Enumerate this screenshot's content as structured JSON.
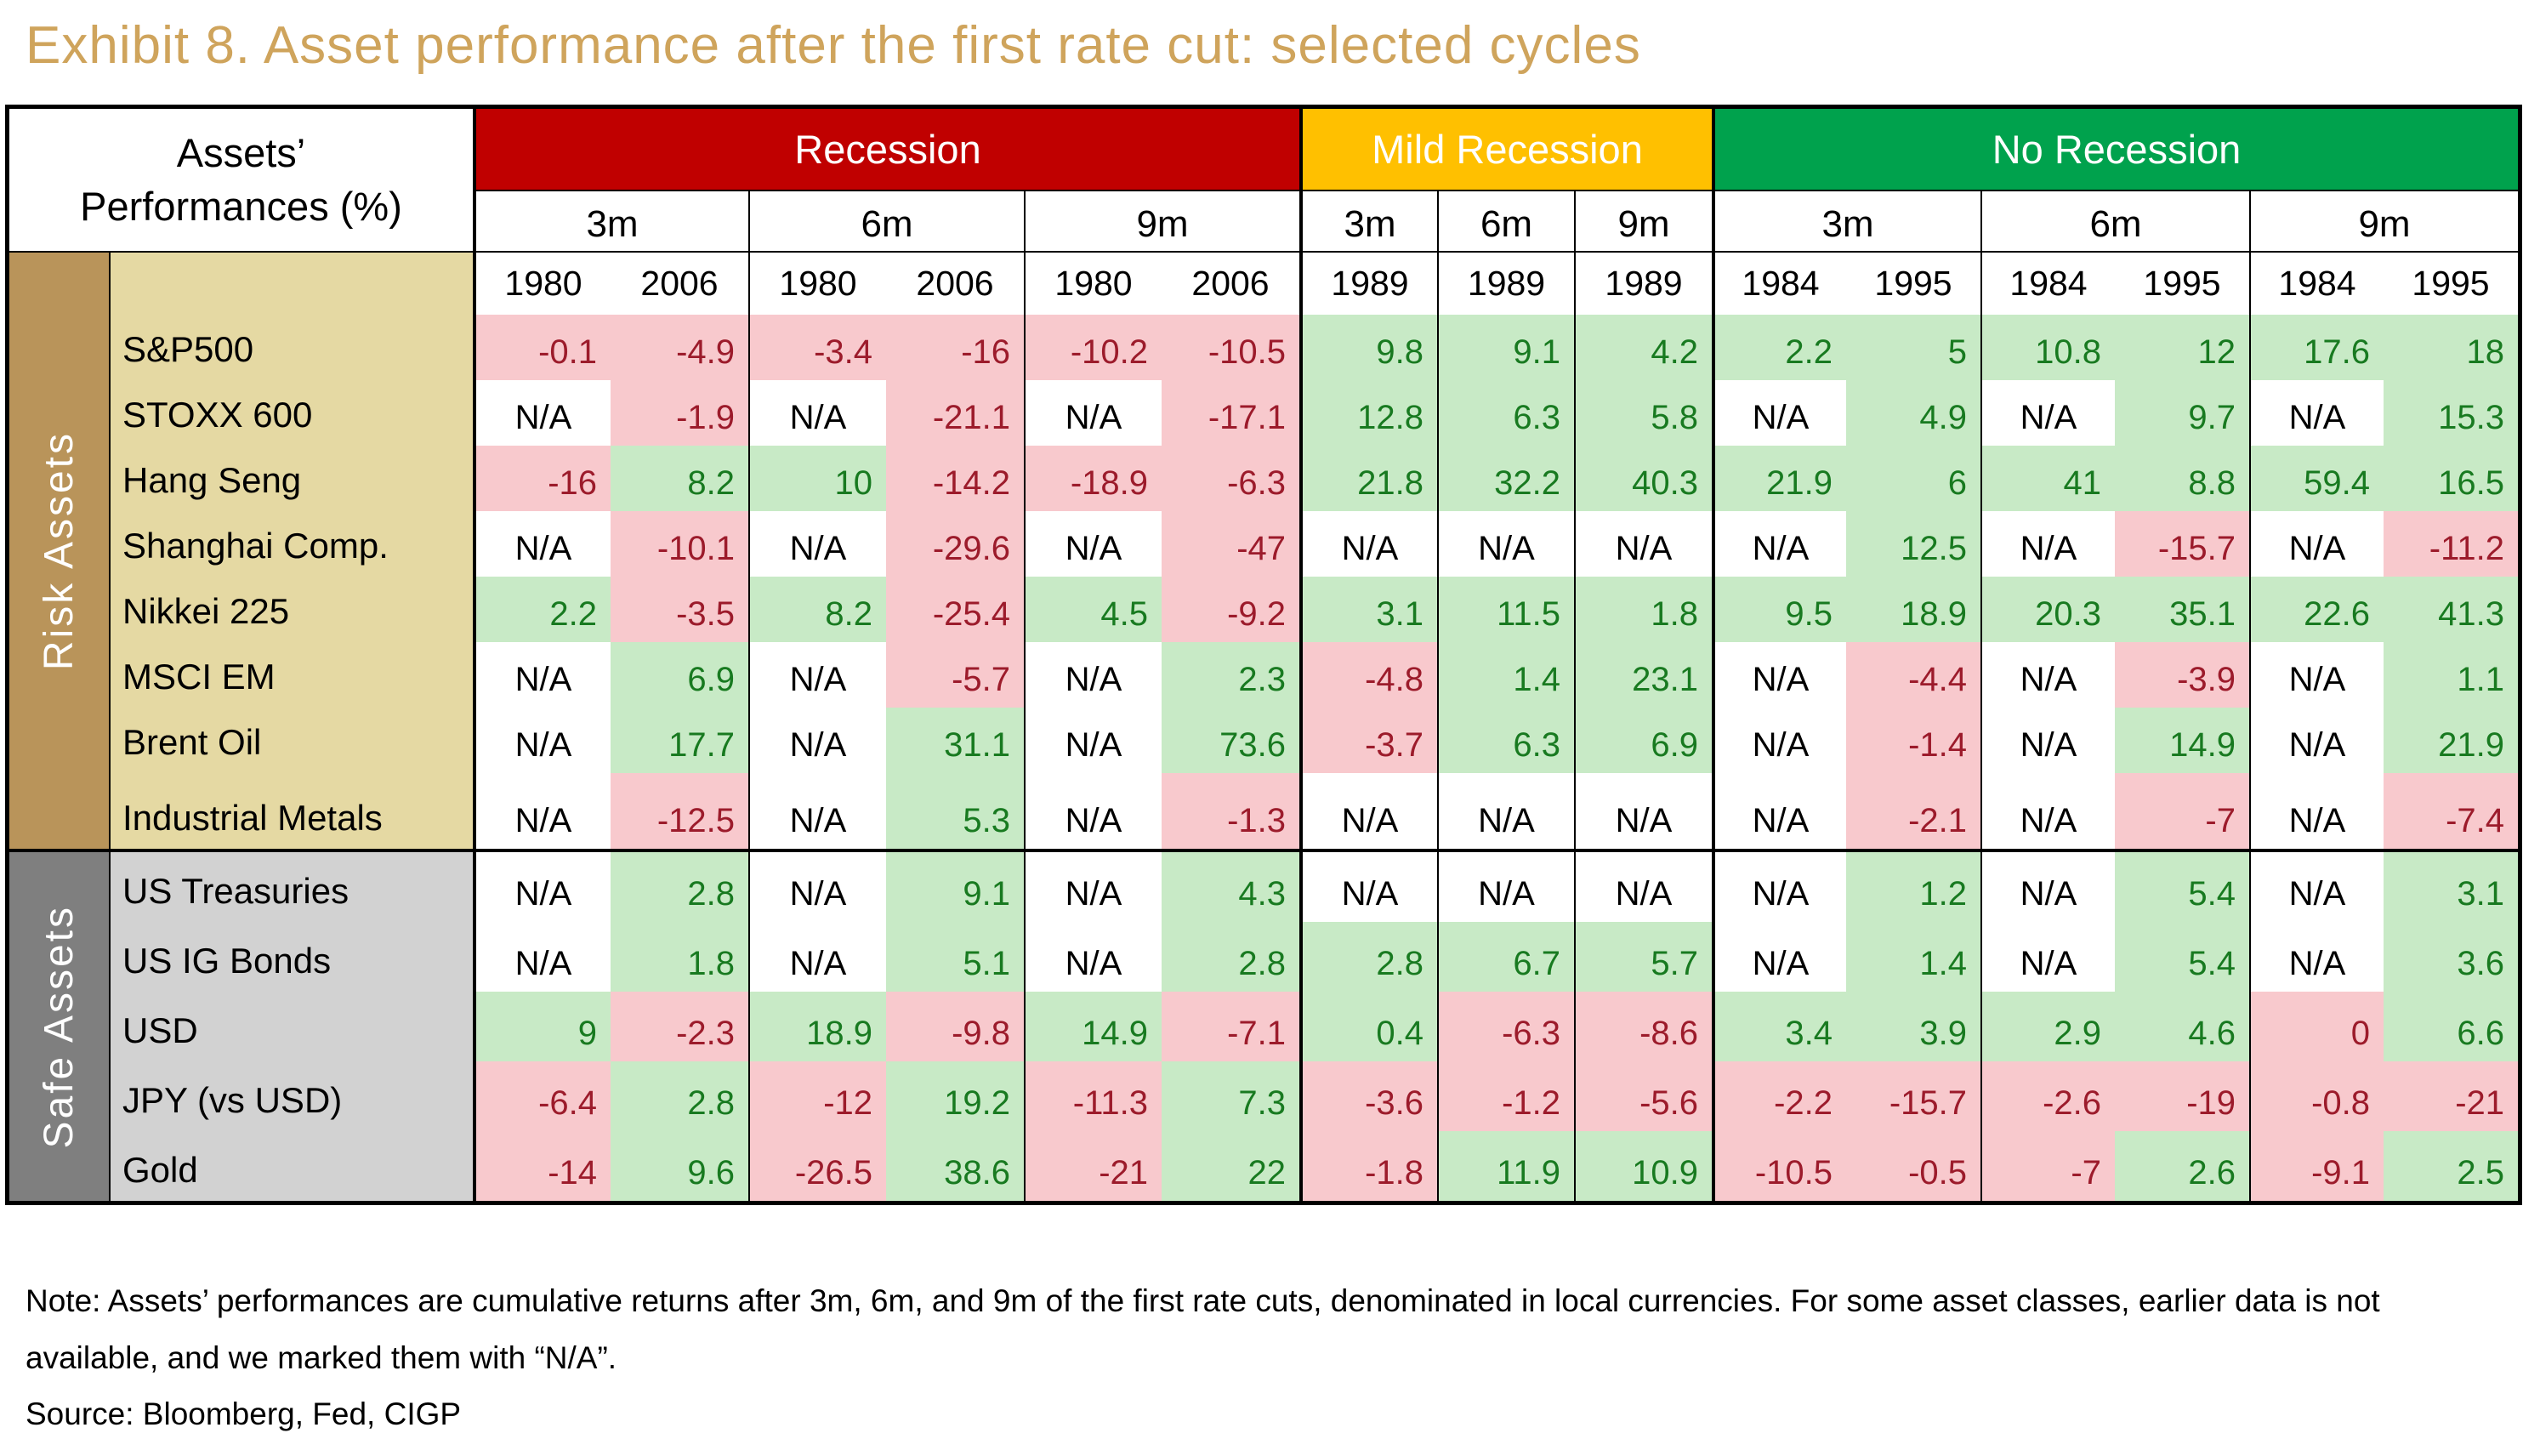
{
  "title": "Exhibit 8. Asset performance after the first rate cut: selected cycles",
  "corner": {
    "line1": "Assets’",
    "line2": "Performances (%)"
  },
  "note": "Note: Assets’ performances are cumulative returns after 3m, 6m, and 9m of the first rate cuts, denominated in local currencies. For some asset classes, earlier data is not available, and we marked them with “N/A”.",
  "source": "Source: Bloomberg, Fed, CIGP",
  "colors": {
    "title": "#CFA45C",
    "border": "#000000",
    "pos-bg": "#C8EAC6",
    "pos-text": "#187A20",
    "neg-bg": "#F8C9CD",
    "neg-text": "#9C1B2B"
  },
  "table": {
    "groups": [
      {
        "label": "Recession",
        "color": "#C00000",
        "periods": [
          {
            "label": "3m",
            "years": [
              "1980",
              "2006"
            ]
          },
          {
            "label": "6m",
            "years": [
              "1980",
              "2006"
            ]
          },
          {
            "label": "9m",
            "years": [
              "1980",
              "2006"
            ]
          }
        ]
      },
      {
        "label": "Mild Recession",
        "color": "#FFC000",
        "periods": [
          {
            "label": "3m",
            "years": [
              "1989"
            ]
          },
          {
            "label": "6m",
            "years": [
              "1989"
            ]
          },
          {
            "label": "9m",
            "years": [
              "1989"
            ]
          }
        ]
      },
      {
        "label": "No Recession",
        "color": "#00A24D",
        "periods": [
          {
            "label": "3m",
            "years": [
              "1984",
              "1995"
            ]
          },
          {
            "label": "6m",
            "years": [
              "1984",
              "1995"
            ]
          },
          {
            "label": "9m",
            "years": [
              "1984",
              "1995"
            ]
          }
        ]
      }
    ],
    "sections": [
      {
        "label": "Risk Assets",
        "band_color": "#B9945A",
        "label_bg": "#E5D9A3",
        "rows": [
          {
            "name": "S&P500",
            "values": [
              "-0.1",
              "-4.9",
              "-3.4",
              "-16",
              "-10.2",
              "-10.5",
              "9.8",
              "9.1",
              "4.2",
              "2.2",
              "5",
              "10.8",
              "12",
              "17.6",
              "18"
            ]
          },
          {
            "name": "STOXX 600",
            "values": [
              "N/A",
              "-1.9",
              "N/A",
              "-21.1",
              "N/A",
              "-17.1",
              "12.8",
              "6.3",
              "5.8",
              "N/A",
              "4.9",
              "N/A",
              "9.7",
              "N/A",
              "15.3"
            ]
          },
          {
            "name": "Hang Seng",
            "values": [
              "-16",
              "8.2",
              "10",
              "-14.2",
              "-18.9",
              "-6.3",
              "21.8",
              "32.2",
              "40.3",
              "21.9",
              "6",
              "41",
              "8.8",
              "59.4",
              "16.5"
            ]
          },
          {
            "name": "Shanghai Comp.",
            "values": [
              "N/A",
              "-10.1",
              "N/A",
              "-29.6",
              "N/A",
              "-47",
              "N/A",
              "N/A",
              "N/A",
              "N/A",
              "12.5",
              "N/A",
              "-15.7",
              "N/A",
              "-11.2"
            ]
          },
          {
            "name": "Nikkei 225",
            "values": [
              "2.2",
              "-3.5",
              "8.2",
              "-25.4",
              "4.5",
              "-9.2",
              "3.1",
              "11.5",
              "1.8",
              "9.5",
              "18.9",
              "20.3",
              "35.1",
              "22.6",
              "41.3"
            ]
          },
          {
            "name": "MSCI EM",
            "values": [
              "N/A",
              "6.9",
              "N/A",
              "-5.7",
              "N/A",
              "2.3",
              "-4.8",
              "1.4",
              "23.1",
              "N/A",
              "-4.4",
              "N/A",
              "-3.9",
              "N/A",
              "1.1"
            ]
          },
          {
            "name": "Brent Oil",
            "values": [
              "N/A",
              "17.7",
              "N/A",
              "31.1",
              "N/A",
              "73.6",
              "-3.7",
              "6.3",
              "6.9",
              "N/A",
              "-1.4",
              "N/A",
              "14.9",
              "N/A",
              "21.9"
            ]
          },
          {
            "name": "Industrial Metals",
            "values": [
              "N/A",
              "-12.5",
              "N/A",
              "5.3",
              "N/A",
              "-1.3",
              "N/A",
              "N/A",
              "N/A",
              "N/A",
              "-2.1",
              "N/A",
              "-7",
              "N/A",
              "-7.4"
            ],
            "tall": true
          }
        ]
      },
      {
        "label": "Safe Assets",
        "band_color": "#7F7F7F",
        "label_bg": "#D2D2D2",
        "rows": [
          {
            "name": "US Treasuries",
            "values": [
              "N/A",
              "2.8",
              "N/A",
              "9.1",
              "N/A",
              "4.3",
              "N/A",
              "N/A",
              "N/A",
              "N/A",
              "1.2",
              "N/A",
              "5.4",
              "N/A",
              "3.1"
            ]
          },
          {
            "name": "US IG Bonds",
            "values": [
              "N/A",
              "1.8",
              "N/A",
              "5.1",
              "N/A",
              "2.8",
              "2.8",
              "6.7",
              "5.7",
              "N/A",
              "1.4",
              "N/A",
              "5.4",
              "N/A",
              "3.6"
            ]
          },
          {
            "name": "USD",
            "values": [
              "9",
              "-2.3",
              "18.9",
              "-9.8",
              "14.9",
              "-7.1",
              "0.4",
              "-6.3",
              "-8.6",
              "3.4",
              "3.9",
              "2.9",
              "4.6",
              "0",
              "6.6"
            ]
          },
          {
            "name": "JPY (vs USD)",
            "values": [
              "-6.4",
              "2.8",
              "-12",
              "19.2",
              "-11.3",
              "7.3",
              "-3.6",
              "-1.2",
              "-5.6",
              "-2.2",
              "-15.7",
              "-2.6",
              "-19",
              "-0.8",
              "-21"
            ]
          },
          {
            "name": "Gold",
            "values": [
              "-14",
              "9.6",
              "-26.5",
              "38.6",
              "-21",
              "22",
              "-1.8",
              "11.9",
              "10.9",
              "-10.5",
              "-0.5",
              "-7",
              "2.6",
              "-9.1",
              "2.5"
            ]
          }
        ]
      }
    ]
  },
  "chart_data": {
    "type": "table",
    "title": "Exhibit 8. Asset performance after the first rate cut: selected cycles",
    "columns": [
      "Recession 3m 1980",
      "Recession 3m 2006",
      "Recession 6m 1980",
      "Recession 6m 2006",
      "Recession 9m 1980",
      "Recession 9m 2006",
      "Mild Recession 3m 1989",
      "Mild Recession 6m 1989",
      "Mild Recession 9m 1989",
      "No Recession 3m 1984",
      "No Recession 3m 1995",
      "No Recession 6m 1984",
      "No Recession 6m 1995",
      "No Recession 9m 1984",
      "No Recession 9m 1995"
    ],
    "rows": [
      {
        "group": "Risk Assets",
        "name": "S&P500",
        "values": [
          -0.1,
          -4.9,
          -3.4,
          -16,
          -10.2,
          -10.5,
          9.8,
          9.1,
          4.2,
          2.2,
          5,
          10.8,
          12,
          17.6,
          18
        ]
      },
      {
        "group": "Risk Assets",
        "name": "STOXX 600",
        "values": [
          null,
          -1.9,
          null,
          -21.1,
          null,
          -17.1,
          12.8,
          6.3,
          5.8,
          null,
          4.9,
          null,
          9.7,
          null,
          15.3
        ]
      },
      {
        "group": "Risk Assets",
        "name": "Hang Seng",
        "values": [
          -16,
          8.2,
          10,
          -14.2,
          -18.9,
          -6.3,
          21.8,
          32.2,
          40.3,
          21.9,
          6,
          41,
          8.8,
          59.4,
          16.5
        ]
      },
      {
        "group": "Risk Assets",
        "name": "Shanghai Comp.",
        "values": [
          null,
          -10.1,
          null,
          -29.6,
          null,
          -47,
          null,
          null,
          null,
          null,
          12.5,
          null,
          -15.7,
          null,
          -11.2
        ]
      },
      {
        "group": "Risk Assets",
        "name": "Nikkei 225",
        "values": [
          2.2,
          -3.5,
          8.2,
          -25.4,
          4.5,
          -9.2,
          3.1,
          11.5,
          1.8,
          9.5,
          18.9,
          20.3,
          35.1,
          22.6,
          41.3
        ]
      },
      {
        "group": "Risk Assets",
        "name": "MSCI EM",
        "values": [
          null,
          6.9,
          null,
          -5.7,
          null,
          2.3,
          -4.8,
          1.4,
          23.1,
          null,
          -4.4,
          null,
          -3.9,
          null,
          1.1
        ]
      },
      {
        "group": "Risk Assets",
        "name": "Brent Oil",
        "values": [
          null,
          17.7,
          null,
          31.1,
          null,
          73.6,
          -3.7,
          6.3,
          6.9,
          null,
          -1.4,
          null,
          14.9,
          null,
          21.9
        ]
      },
      {
        "group": "Risk Assets",
        "name": "Industrial Metals",
        "values": [
          null,
          -12.5,
          null,
          5.3,
          null,
          -1.3,
          null,
          null,
          null,
          null,
          -2.1,
          null,
          -7,
          null,
          -7.4
        ]
      },
      {
        "group": "Safe Assets",
        "name": "US Treasuries",
        "values": [
          null,
          2.8,
          null,
          9.1,
          null,
          4.3,
          null,
          null,
          null,
          null,
          1.2,
          null,
          5.4,
          null,
          3.1
        ]
      },
      {
        "group": "Safe Assets",
        "name": "US IG Bonds",
        "values": [
          null,
          1.8,
          null,
          5.1,
          null,
          2.8,
          2.8,
          6.7,
          5.7,
          null,
          1.4,
          null,
          5.4,
          null,
          3.6
        ]
      },
      {
        "group": "Safe Assets",
        "name": "USD",
        "values": [
          9,
          -2.3,
          18.9,
          -9.8,
          14.9,
          -7.1,
          0.4,
          -6.3,
          -8.6,
          3.4,
          3.9,
          2.9,
          4.6,
          0,
          6.6
        ]
      },
      {
        "group": "Safe Assets",
        "name": "JPY (vs USD)",
        "values": [
          -6.4,
          2.8,
          -12,
          19.2,
          -11.3,
          7.3,
          -3.6,
          -1.2,
          -5.6,
          -2.2,
          -15.7,
          -2.6,
          -19,
          -0.8,
          -21
        ]
      },
      {
        "group": "Safe Assets",
        "name": "Gold",
        "values": [
          -14,
          9.6,
          -26.5,
          38.6,
          -21,
          22,
          -1.8,
          11.9,
          10.9,
          -10.5,
          -0.5,
          -7,
          2.6,
          -9.1,
          2.5
        ]
      }
    ],
    "cell_color_rule": "value > 0 green, value <= 0 red, N/A white",
    "legend_position": "none",
    "grid": true
  }
}
